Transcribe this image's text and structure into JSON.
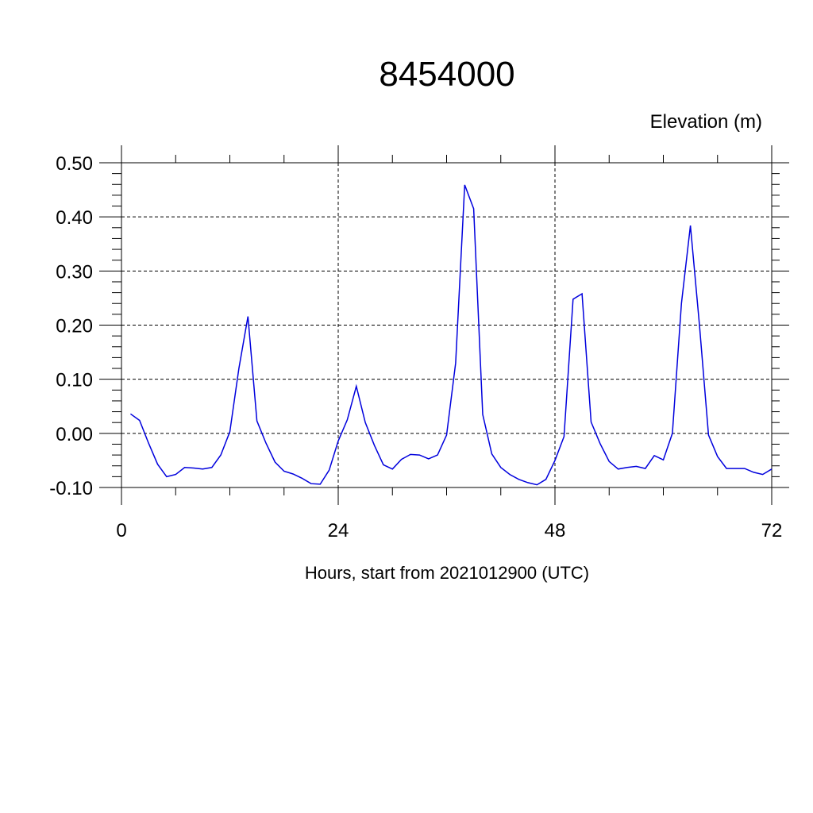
{
  "chart_data": {
    "type": "line",
    "title": "8454000",
    "ylabel": "Elevation (m)",
    "xlabel": "Hours, start from 2021012900 (UTC)",
    "xlim": [
      0,
      72
    ],
    "ylim": [
      -0.1,
      0.5
    ],
    "x_ticks": [
      0,
      24,
      48,
      72
    ],
    "x_tick_labels": [
      "0",
      "24",
      "48",
      "72"
    ],
    "y_ticks": [
      -0.1,
      0.0,
      0.1,
      0.2,
      0.3,
      0.4,
      0.5
    ],
    "y_tick_labels": [
      "-0.10",
      "0.00",
      "0.10",
      "0.20",
      "0.30",
      "0.40",
      "0.50"
    ],
    "grid": true,
    "colors": {
      "line": "#0000dd",
      "axis": "#000000",
      "grid": "#000000"
    },
    "series": [
      {
        "x": [
          1,
          2,
          3,
          4,
          5,
          6,
          7,
          8,
          9,
          10,
          11,
          12,
          13,
          14,
          15,
          16,
          17,
          18,
          19,
          20,
          21,
          22,
          23,
          24,
          25,
          26,
          27,
          28,
          29,
          30,
          31,
          32,
          33,
          34,
          35,
          36,
          37,
          38,
          39,
          40,
          41,
          42,
          43,
          44,
          45,
          46,
          47,
          48,
          49,
          50,
          51,
          52,
          53,
          54,
          55,
          56,
          57,
          58,
          59,
          60,
          61,
          62,
          63,
          64,
          65,
          66,
          67,
          68,
          69,
          70,
          71,
          72
        ],
        "values": [
          0.036,
          0.024,
          -0.018,
          -0.057,
          -0.08,
          -0.076,
          -0.063,
          -0.064,
          -0.066,
          -0.063,
          -0.04,
          0.003,
          0.12,
          0.216,
          0.023,
          -0.018,
          -0.053,
          -0.07,
          -0.075,
          -0.083,
          -0.093,
          -0.094,
          -0.068,
          -0.014,
          0.025,
          0.087,
          0.02,
          -0.022,
          -0.058,
          -0.066,
          -0.048,
          -0.039,
          -0.04,
          -0.047,
          -0.04,
          -0.003,
          0.13,
          0.459,
          0.415,
          0.035,
          -0.038,
          -0.063,
          -0.076,
          -0.085,
          -0.091,
          -0.095,
          -0.085,
          -0.05,
          -0.006,
          0.248,
          0.258,
          0.021,
          -0.019,
          -0.052,
          -0.066,
          -0.063,
          -0.061,
          -0.065,
          -0.041,
          -0.049,
          0.0,
          0.24,
          0.384,
          0.2,
          -0.003,
          -0.043,
          -0.065,
          -0.065,
          -0.065,
          -0.072,
          -0.076,
          -0.066
        ]
      }
    ]
  }
}
